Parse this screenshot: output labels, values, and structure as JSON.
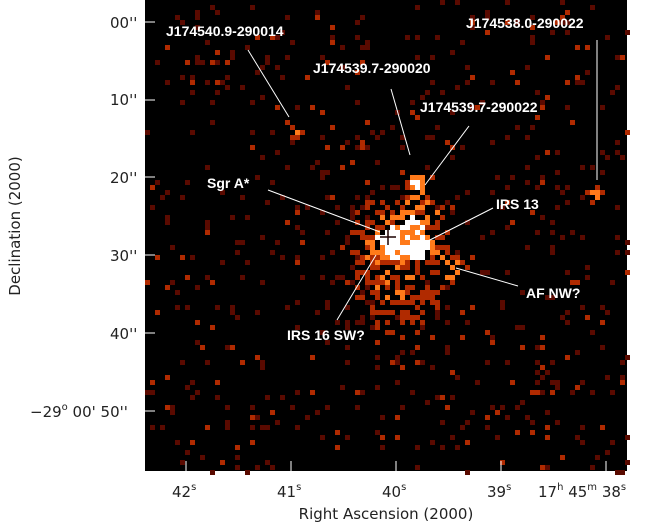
{
  "figure": {
    "x_axis_label": "Right Ascension (2000)",
    "y_axis_label": "Declination (2000)",
    "x_ticks": [
      {
        "id": "ra-42",
        "text": "42",
        "sup": "s"
      },
      {
        "id": "ra-41",
        "text": "41",
        "sup": "s"
      },
      {
        "id": "ra-40",
        "text": "40",
        "sup": "s"
      },
      {
        "id": "ra-39",
        "text": "39",
        "sup": "s"
      }
    ],
    "x_tick_last": {
      "h": "17",
      "h_sup": "h",
      "m": " 45",
      "m_sup": "m",
      "s": " 38",
      "s_sup": "s"
    },
    "y_ticks": [
      {
        "id": "dec-00",
        "text": "00''"
      },
      {
        "id": "dec-10",
        "text": "10''"
      },
      {
        "id": "dec-20",
        "text": "20''"
      },
      {
        "id": "dec-30",
        "text": "30''"
      },
      {
        "id": "dec-40",
        "text": "40''"
      },
      {
        "id": "dec-50",
        "pre": "−29",
        "sup": "o",
        "post": " 00' 50''"
      }
    ],
    "sources": [
      {
        "id": "J174540.9-290014",
        "label": "J174540.9-290014"
      },
      {
        "id": "J174538.0-290022",
        "label": "J174538.0-290022"
      },
      {
        "id": "J174539.7-290020",
        "label": "J174539.7-290020"
      },
      {
        "id": "J174539.7-290022",
        "label": "J174539.7-290022"
      },
      {
        "id": "Sgr A*",
        "label": "Sgr A*"
      },
      {
        "id": "IRS 13",
        "label": "IRS 13"
      },
      {
        "id": "AF NW?",
        "label": "AF NW?"
      },
      {
        "id": "IRS 16 SW?",
        "label": "IRS 16 SW?"
      }
    ],
    "colors": {
      "background": "#000000",
      "faint": "#5a0a00",
      "mid": "#b02a00",
      "bright": "#ff7a1a",
      "peak": "#ffffff"
    }
  }
}
